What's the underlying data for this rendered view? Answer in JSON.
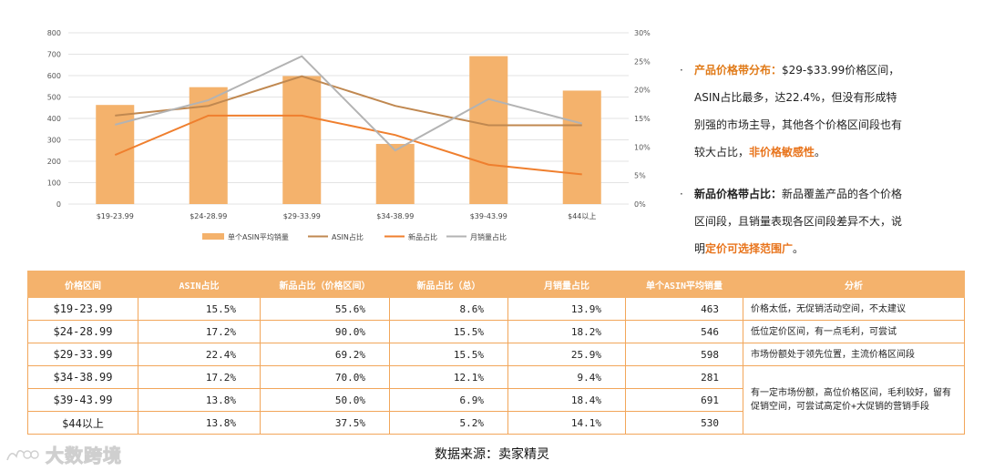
{
  "chart_data": {
    "type": "bar+line",
    "categories": [
      "$19-23.99",
      "$24-28.99",
      "$29-33.99",
      "$34-38.99",
      "$39-43.99",
      "$44以上"
    ],
    "bars": {
      "name": "单个ASIN平均销量",
      "values": [
        463,
        546,
        598,
        281,
        691,
        530
      ],
      "color": "#f4b26c"
    },
    "lines": [
      {
        "name": "ASIN占比",
        "values": [
          15.5,
          17.2,
          22.4,
          17.2,
          13.8,
          13.8
        ],
        "color": "#c08850"
      },
      {
        "name": "新品占比",
        "values": [
          8.6,
          15.5,
          15.5,
          12.1,
          6.9,
          5.2
        ],
        "color": "#ef7f2e"
      },
      {
        "name": "月销量占比",
        "values": [
          13.9,
          18.2,
          25.9,
          9.4,
          18.4,
          14.1
        ],
        "color": "#b3b3b3"
      }
    ],
    "y_left": {
      "range": [
        0,
        800
      ],
      "ticks": [
        "0",
        "100",
        "200",
        "300",
        "400",
        "500",
        "600",
        "700",
        "800"
      ]
    },
    "y_right": {
      "range": [
        0,
        30
      ],
      "ticks": [
        "0%",
        "5%",
        "10%",
        "15%",
        "20%",
        "25%",
        "30%"
      ]
    },
    "grid": true,
    "legend": "bottom"
  },
  "notes": {
    "bullet": "·",
    "n1_title": "产品价格带分布：",
    "n1_text": "$29-$33.99价格区间，ASIN占比最多，达22.4%，但没有形成特别强的市场主导，其他各个价格区间段也有较大占比，",
    "n1_hl": "非价格敏感性",
    "n1_end": "。",
    "n2_title": "新品价格带占比：",
    "n2_text": "新品覆盖产品的各个价格区间段，且销量表现各区间段差异不大，说明",
    "n2_hl": "定价可选择范围广",
    "n2_end": "。"
  },
  "table": {
    "headers": [
      "价格区间",
      "ASIN占比",
      "新品占比（价格区间）",
      "新品占比（总）",
      "月销量占比",
      "单个ASIN平均销量",
      "分析"
    ],
    "rows": [
      [
        "$19-23.99",
        "15.5%",
        "55.6%",
        "8.6%",
        "13.9%",
        "463"
      ],
      [
        "$24-28.99",
        "17.2%",
        "90.0%",
        "15.5%",
        "18.2%",
        "546"
      ],
      [
        "$29-33.99",
        "22.4%",
        "69.2%",
        "15.5%",
        "25.9%",
        "598"
      ],
      [
        "$34-38.99",
        "17.2%",
        "70.0%",
        "12.1%",
        "9.4%",
        "281"
      ],
      [
        "$39-43.99",
        "13.8%",
        "50.0%",
        "6.9%",
        "18.4%",
        "691"
      ],
      [
        "$44以上",
        "13.8%",
        "37.5%",
        "5.2%",
        "14.1%",
        "530"
      ]
    ],
    "analysis": [
      "价格太低，无促销活动空间，不太建议",
      "低位定价区间，有一点毛利，可尝试",
      "市场份额处于领先位置，主流价格区间段",
      "有一定市场份额，高位价格区间，毛利较好，留有促销空间，可尝试高定价+大促销的营销手段"
    ]
  },
  "source": "数据来源：卖家精灵",
  "watermark": "大数跨境"
}
